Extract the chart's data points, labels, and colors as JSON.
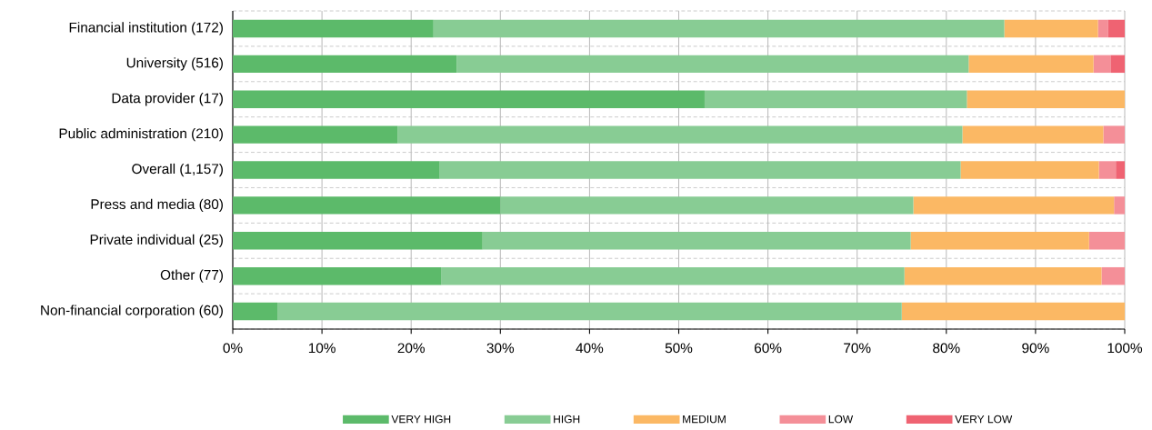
{
  "chart_data": {
    "type": "bar",
    "orientation": "horizontal",
    "stacked": true,
    "categories": [
      "Financial institution (172)",
      "University (516)",
      "Data provider (17)",
      "Public administration (210)",
      "Overall (1,157)",
      "Press and media (80)",
      "Private individual (25)",
      "Other (77)",
      "Non-financial corporation (60)"
    ],
    "series": [
      {
        "name": "VERY HIGH",
        "color": "#5cba6a",
        "values": [
          22.5,
          25.1,
          52.9,
          18.5,
          23.2,
          30,
          28,
          23.4,
          5
        ]
      },
      {
        "name": "HIGH",
        "color": "#88cc94",
        "values": [
          64.0,
          57.4,
          29.4,
          63.3,
          58.4,
          46.3,
          48,
          51.9,
          70
        ]
      },
      {
        "name": "MEDIUM",
        "color": "#fbb864",
        "values": [
          10.5,
          14.0,
          17.7,
          15.8,
          15.5,
          22.5,
          20,
          22.1,
          25
        ]
      },
      {
        "name": "LOW",
        "color": "#f48f98",
        "values": [
          1.1,
          1.9,
          0,
          2.4,
          1.9,
          1.2,
          4,
          2.6,
          0
        ]
      },
      {
        "name": "VERY LOW",
        "color": "#ef6372",
        "values": [
          1.9,
          1.6,
          0,
          0,
          1.0,
          0,
          0,
          0,
          0
        ]
      }
    ],
    "xlim": [
      0,
      100
    ],
    "xticks": [
      {
        "value": 0,
        "label": "0%"
      },
      {
        "value": 10,
        "label": "10%"
      },
      {
        "value": 20,
        "label": "20%"
      },
      {
        "value": 30,
        "label": "30%"
      },
      {
        "value": 40,
        "label": "40%"
      },
      {
        "value": 50,
        "label": "50%"
      },
      {
        "value": 60,
        "label": "60%"
      },
      {
        "value": 70,
        "label": "70%"
      },
      {
        "value": 80,
        "label": "80%"
      },
      {
        "value": 90,
        "label": "90%"
      },
      {
        "value": 100,
        "label": "100%"
      }
    ],
    "grid": true,
    "legend": "bottom"
  }
}
